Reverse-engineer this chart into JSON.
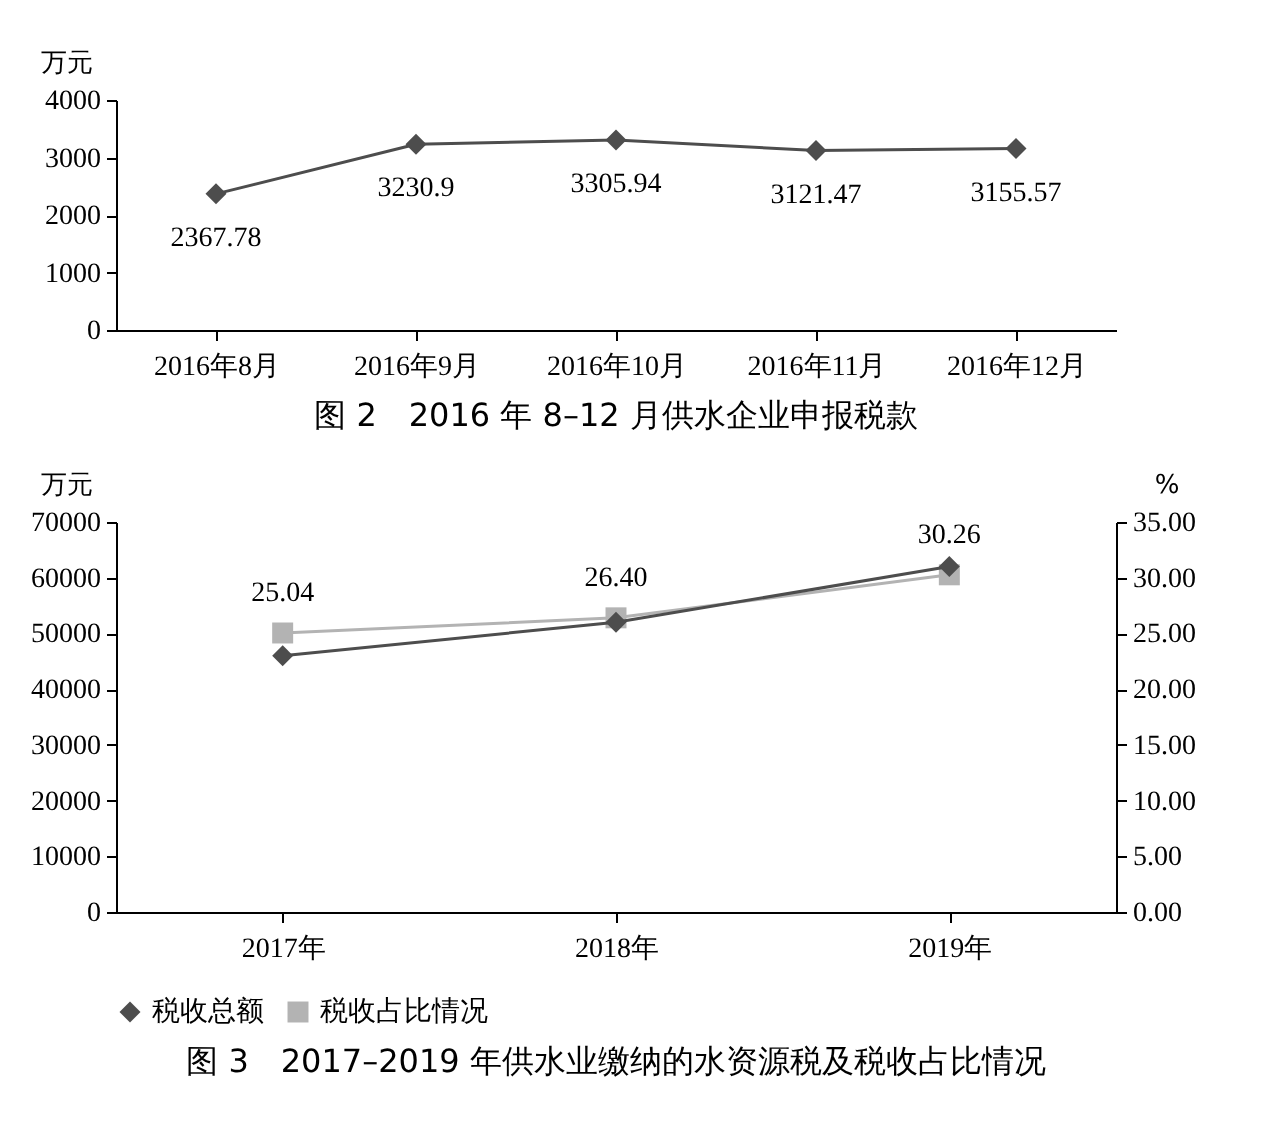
{
  "chart_data": [
    {
      "type": "line",
      "title": "图 2　2016 年 8–12 月供水企业申报税款",
      "ylabel": "万元",
      "categories": [
        "2016年8月",
        "2016年9月",
        "2016年10月",
        "2016年11月",
        "2016年12月"
      ],
      "series": [
        {
          "color": "#4d4d4d",
          "marker": "diamond",
          "values": [
            2367.78,
            3230.9,
            3305.94,
            3121.47,
            3155.57
          ]
        }
      ],
      "ylim": [
        0,
        4000
      ],
      "yticks": [
        0,
        1000,
        2000,
        3000,
        4000
      ],
      "grid": false,
      "legend": false,
      "data_labels": true
    },
    {
      "type": "line",
      "title": "图 3　2017–2019 年供水业缴纳的水资源税及税收占比情况",
      "ylabel": "万元",
      "y2label": "%",
      "categories": [
        "2017年",
        "2018年",
        "2019年"
      ],
      "series": [
        {
          "name": "税收总额",
          "color": "#4d4d4d",
          "marker": "diamond",
          "values": [
            46000,
            52000,
            62000
          ]
        },
        {
          "name": "税收占比情况",
          "color": "#b3b3b3",
          "marker": "square",
          "axis": "y2",
          "values": [
            25.04,
            26.4,
            30.26
          ],
          "value_labels": [
            "25.04",
            "26.40",
            "30.26"
          ]
        }
      ],
      "ylim": [
        0,
        70000
      ],
      "yticks": [
        0,
        10000,
        20000,
        30000,
        40000,
        50000,
        60000,
        70000
      ],
      "y2lim": [
        0,
        35
      ],
      "y2ticks": [
        {
          "value": 0,
          "label": "0.00"
        },
        {
          "value": 5,
          "label": "5.00"
        },
        {
          "value": 10,
          "label": "10.00"
        },
        {
          "value": 15,
          "label": "15.00"
        },
        {
          "value": 20,
          "label": "20.00"
        },
        {
          "value": 25,
          "label": "25.00"
        },
        {
          "value": 30,
          "label": "30.00"
        },
        {
          "value": 35,
          "label": "35.00"
        }
      ],
      "grid": false,
      "legend": "bottom"
    }
  ]
}
